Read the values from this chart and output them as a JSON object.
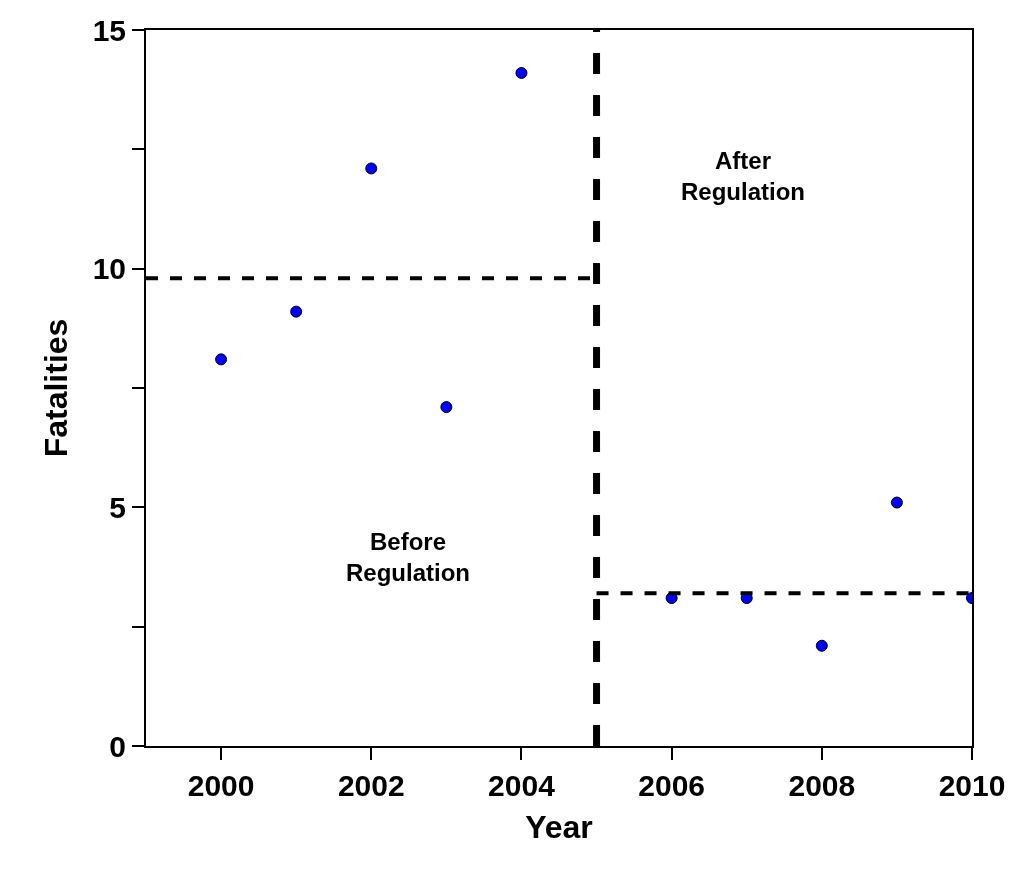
{
  "chart_data": {
    "type": "scatter",
    "xlabel": "Year",
    "ylabel": "Fatalities",
    "x": [
      2000,
      2001,
      2002,
      2003,
      2004,
      2006,
      2007,
      2008,
      2009,
      2010
    ],
    "series": [
      {
        "color": "#0000ff",
        "marker": "circle",
        "values": [
          8.1,
          9.1,
          12.1,
          7.1,
          14.1,
          3.1,
          3.1,
          2.1,
          5.1,
          3.1
        ]
      },
      {
        "type": "line",
        "color": "#000000",
        "line_style": "dashed",
        "x": [
          1999,
          2005
        ],
        "values": [
          9.8,
          9.8
        ]
      },
      {
        "type": "line",
        "color": "#000000",
        "line_style": "dashed",
        "x": [
          2005,
          2010
        ],
        "values": [
          3.2,
          3.2
        ]
      }
    ],
    "ref_lines": [
      {
        "axis": "x",
        "value": 2005,
        "color": "#000000",
        "line_style": "dashed"
      }
    ],
    "annotations": [
      "Before\nRegulation",
      "After\nRegulation"
    ],
    "xlim": [
      1999,
      2010
    ],
    "xticks": [
      2000,
      2002,
      2004,
      2006,
      2008,
      2010
    ],
    "ylim": [
      0,
      15
    ],
    "yticks": [
      0,
      {
        "value": 2.5,
        "label": null
      },
      5,
      {
        "value": 7.5,
        "label": null
      },
      10,
      {
        "value": 12.5,
        "label": null
      },
      15
    ]
  }
}
